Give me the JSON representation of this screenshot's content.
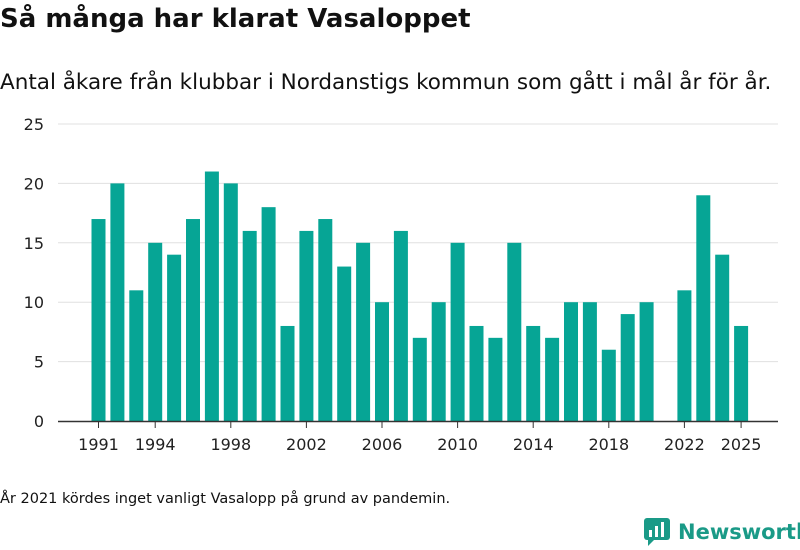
{
  "title": "Så många har klarat Vasaloppet",
  "subtitle": "Antal åkare från klubbar i Nordanstigs kommun som gått i mål år för år.",
  "footnote": "År 2021 kördes inget vanligt Vasalopp på grund av pandemin.",
  "brand": {
    "name": "Newsworthy",
    "color": "#1a9a87",
    "icon": "newsworthy-logo-icon"
  },
  "colors": {
    "bar": "#06a595",
    "grid": "#e0e0e0",
    "axis": "#333333"
  },
  "chart_data": {
    "type": "bar",
    "title": "Så många har klarat Vasaloppet",
    "xlabel": "",
    "ylabel": "",
    "ylim": [
      0,
      25
    ],
    "yticks": [
      0,
      5,
      10,
      15,
      20,
      25
    ],
    "xticks": [
      1991,
      1994,
      1998,
      2002,
      2006,
      2010,
      2014,
      2018,
      2022,
      2025
    ],
    "categories": [
      1991,
      1992,
      1993,
      1994,
      1995,
      1996,
      1997,
      1998,
      1999,
      2000,
      2001,
      2002,
      2003,
      2004,
      2005,
      2006,
      2007,
      2008,
      2009,
      2010,
      2011,
      2012,
      2013,
      2014,
      2015,
      2016,
      2017,
      2018,
      2019,
      2020,
      2021,
      2022,
      2023,
      2024,
      2025
    ],
    "values": [
      17,
      20,
      11,
      15,
      14,
      17,
      21,
      20,
      16,
      18,
      8,
      16,
      17,
      13,
      15,
      10,
      16,
      7,
      10,
      15,
      8,
      7,
      15,
      8,
      7,
      10,
      10,
      6,
      9,
      10,
      null,
      11,
      19,
      14,
      8
    ],
    "grid": true
  }
}
